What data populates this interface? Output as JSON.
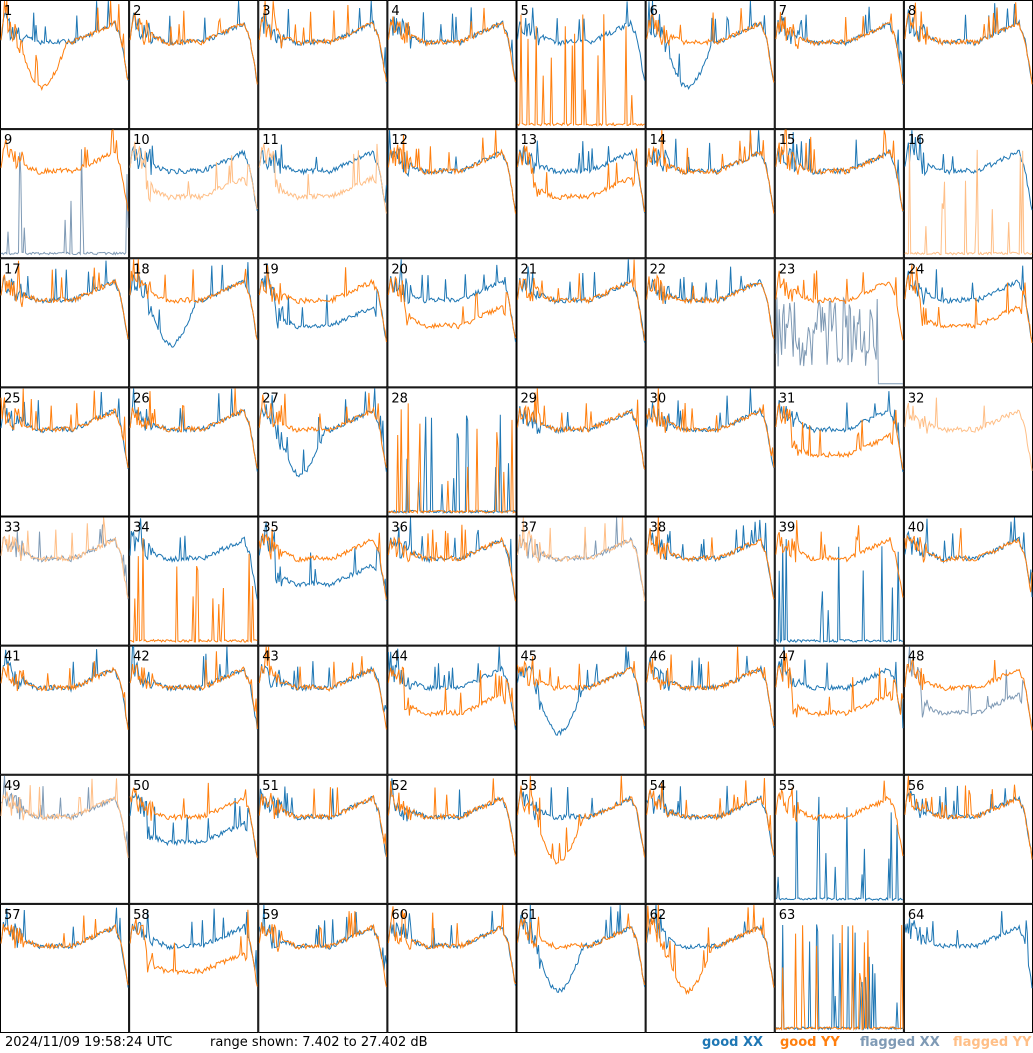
{
  "footer": {
    "timestamp": "2024/11/09 19:58:24 UTC",
    "range_text": "range shown: 7.402 to 27.402 dB"
  },
  "legend": [
    {
      "key": "good_xx",
      "label": "good XX",
      "color": "#1f77b4"
    },
    {
      "key": "good_yy",
      "label": "good YY",
      "color": "#ff7f0e"
    },
    {
      "key": "flagged_xx",
      "label": "flagged XX",
      "color": "#7f9ab5"
    },
    {
      "key": "flagged_yy",
      "label": "flagged YY",
      "color": "#ffbf87"
    }
  ],
  "chart_data": {
    "type": "line",
    "grid": "8x8 small multiples",
    "title": "",
    "xlabel": "",
    "ylabel": "",
    "ylim_db": [
      7.402,
      27.402
    ],
    "tiles": [
      {
        "id": 1,
        "xx": "good",
        "yy": "good",
        "shape": "dip_yy"
      },
      {
        "id": 2,
        "xx": "good",
        "yy": "good",
        "shape": "std"
      },
      {
        "id": 3,
        "xx": "good",
        "yy": "good",
        "shape": "std"
      },
      {
        "id": 4,
        "xx": "good",
        "yy": "good",
        "shape": "std"
      },
      {
        "id": 5,
        "xx": "good",
        "yy": "good",
        "shape": "yy_dead"
      },
      {
        "id": 6,
        "xx": "good",
        "yy": "good",
        "shape": "dip_xx"
      },
      {
        "id": 7,
        "xx": "good",
        "yy": "good",
        "shape": "std"
      },
      {
        "id": 8,
        "xx": "good",
        "yy": "good",
        "shape": "std"
      },
      {
        "id": 9,
        "xx": "flagged",
        "yy": "good",
        "shape": "xx_dead"
      },
      {
        "id": 10,
        "xx": "good",
        "yy": "flagged",
        "shape": "yy_low"
      },
      {
        "id": 11,
        "xx": "good",
        "yy": "flagged",
        "shape": "yy_low"
      },
      {
        "id": 12,
        "xx": "good",
        "yy": "good",
        "shape": "std"
      },
      {
        "id": 13,
        "xx": "good",
        "yy": "good",
        "shape": "yy_low"
      },
      {
        "id": 14,
        "xx": "good",
        "yy": "good",
        "shape": "std"
      },
      {
        "id": 15,
        "xx": "good",
        "yy": "good",
        "shape": "std"
      },
      {
        "id": 16,
        "xx": "good",
        "yy": "flagged",
        "shape": "yy_dead"
      },
      {
        "id": 17,
        "xx": "good",
        "yy": "good",
        "shape": "std"
      },
      {
        "id": 18,
        "xx": "good",
        "yy": "good",
        "shape": "dip_xx"
      },
      {
        "id": 19,
        "xx": "good",
        "yy": "good",
        "shape": "xx_low"
      },
      {
        "id": 20,
        "xx": "good",
        "yy": "good",
        "shape": "yy_low"
      },
      {
        "id": 21,
        "xx": "good",
        "yy": "good",
        "shape": "std"
      },
      {
        "id": 22,
        "xx": "good",
        "yy": "good",
        "shape": "std"
      },
      {
        "id": 23,
        "xx": "flagged",
        "yy": "good",
        "shape": "xx_noise"
      },
      {
        "id": 24,
        "xx": "good",
        "yy": "good",
        "shape": "yy_low"
      },
      {
        "id": 25,
        "xx": "good",
        "yy": "good",
        "shape": "std"
      },
      {
        "id": 26,
        "xx": "good",
        "yy": "good",
        "shape": "std"
      },
      {
        "id": 27,
        "xx": "good",
        "yy": "good",
        "shape": "dip_xx"
      },
      {
        "id": 28,
        "xx": "good",
        "yy": "good",
        "shape": "both_dead"
      },
      {
        "id": 29,
        "xx": "good",
        "yy": "good",
        "shape": "std"
      },
      {
        "id": 30,
        "xx": "good",
        "yy": "good",
        "shape": "std"
      },
      {
        "id": 31,
        "xx": "good",
        "yy": "good",
        "shape": "yy_low"
      },
      {
        "id": 32,
        "xx": "flagged",
        "yy": "flagged",
        "shape": "flag_both"
      },
      {
        "id": 33,
        "xx": "flagged",
        "yy": "flagged",
        "shape": "std"
      },
      {
        "id": 34,
        "xx": "good",
        "yy": "good",
        "shape": "yy_dead"
      },
      {
        "id": 35,
        "xx": "good",
        "yy": "good",
        "shape": "xx_low"
      },
      {
        "id": 36,
        "xx": "good",
        "yy": "good",
        "shape": "std"
      },
      {
        "id": 37,
        "xx": "flagged",
        "yy": "flagged",
        "shape": "std"
      },
      {
        "id": 38,
        "xx": "good",
        "yy": "good",
        "shape": "std"
      },
      {
        "id": 39,
        "xx": "good",
        "yy": "good",
        "shape": "xx_dead"
      },
      {
        "id": 40,
        "xx": "good",
        "yy": "good",
        "shape": "std"
      },
      {
        "id": 41,
        "xx": "good",
        "yy": "good",
        "shape": "std"
      },
      {
        "id": 42,
        "xx": "good",
        "yy": "good",
        "shape": "std"
      },
      {
        "id": 43,
        "xx": "good",
        "yy": "good",
        "shape": "std"
      },
      {
        "id": 44,
        "xx": "good",
        "yy": "good",
        "shape": "yy_low"
      },
      {
        "id": 45,
        "xx": "good",
        "yy": "good",
        "shape": "dip_xx"
      },
      {
        "id": 46,
        "xx": "good",
        "yy": "good",
        "shape": "std"
      },
      {
        "id": 47,
        "xx": "good",
        "yy": "good",
        "shape": "yy_low"
      },
      {
        "id": 48,
        "xx": "flagged",
        "yy": "good",
        "shape": "xx_low"
      },
      {
        "id": 49,
        "xx": "flagged",
        "yy": "flagged",
        "shape": "std"
      },
      {
        "id": 50,
        "xx": "good",
        "yy": "good",
        "shape": "xx_low"
      },
      {
        "id": 51,
        "xx": "good",
        "yy": "good",
        "shape": "std"
      },
      {
        "id": 52,
        "xx": "good",
        "yy": "good",
        "shape": "std"
      },
      {
        "id": 53,
        "xx": "good",
        "yy": "good",
        "shape": "dip_yy"
      },
      {
        "id": 54,
        "xx": "good",
        "yy": "good",
        "shape": "std"
      },
      {
        "id": 55,
        "xx": "good",
        "yy": "good",
        "shape": "xx_dead"
      },
      {
        "id": 56,
        "xx": "good",
        "yy": "good",
        "shape": "std"
      },
      {
        "id": 57,
        "xx": "good",
        "yy": "good",
        "shape": "std"
      },
      {
        "id": 58,
        "xx": "good",
        "yy": "good",
        "shape": "yy_low"
      },
      {
        "id": 59,
        "xx": "good",
        "yy": "good",
        "shape": "std"
      },
      {
        "id": 60,
        "xx": "good",
        "yy": "good",
        "shape": "std"
      },
      {
        "id": 61,
        "xx": "good",
        "yy": "good",
        "shape": "dip_xx"
      },
      {
        "id": 62,
        "xx": "good",
        "yy": "good",
        "shape": "dip_yy"
      },
      {
        "id": 63,
        "xx": "good",
        "yy": "good",
        "shape": "both_dead"
      },
      {
        "id": 64,
        "xx": "good",
        "yy": "good",
        "shape": "xx_only"
      }
    ]
  }
}
